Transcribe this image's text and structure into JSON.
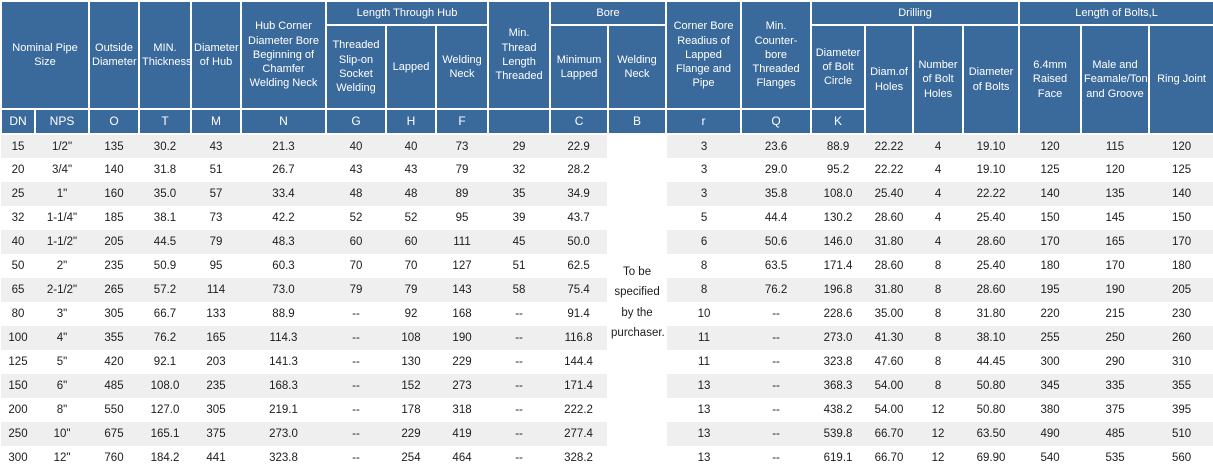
{
  "palette": {
    "header_bg": "#3a6a9c",
    "header_text": "#ffffff",
    "row_stripe": "#efefef",
    "row_plain": "#ffffff",
    "body_text": "#1c1c1c"
  },
  "columns": {
    "nominal": "Nominal Pipe Size",
    "outside": "Outside Diameter",
    "min_thickness": "MIN. Thickness",
    "hub": "Diameter of Hub",
    "hub_corner": "Hub Corner Diameter Bore Beginning of Chamfer Welding Neck",
    "length_through_hub": "Length Through Hub",
    "threaded_slip_on": "Threaded Slip-on Socket Welding",
    "lapped": "Lapped",
    "welding_neck": "Welding Neck",
    "min_thread": "Min. Thread Length Threaded",
    "bore": "Bore",
    "minimum_lapped": "Minimum Lapped",
    "bore_welding_neck": "Welding Neck",
    "corner_bore": "Corner Bore Readius of Lapped Flange and Pipe",
    "counter_bore": "Min. Counter-bore Threaded Flanges",
    "drilling": "Drilling",
    "bolt_circle": "Diameter of Bolt Circle",
    "diam_holes": "Diam.of Holes",
    "num_holes": "Number of Bolt Holes",
    "dia_bolts": "Diameter of Bolts",
    "length_bolts": "Length of Bolts,L",
    "raised_face": "6.4mm Raised Face",
    "male_female": "Male and Feamale/Tongue and Groove",
    "ring_joint": "Ring Joint"
  },
  "letters": [
    "DN",
    "NPS",
    "O",
    "T",
    "M",
    "N",
    "G",
    "H",
    "F",
    "",
    "C",
    "B",
    "r",
    "Q",
    "K"
  ],
  "b_note": "To be specified by the purchaser.",
  "rows": [
    [
      "15",
      "1/2\"",
      "135",
      "30.2",
      "43",
      "21.3",
      "40",
      "40",
      "73",
      "29",
      "22.9",
      "3",
      "23.6",
      "88.9",
      "22.22",
      "4",
      "19.10",
      "120",
      "115",
      "120"
    ],
    [
      "20",
      "3/4\"",
      "140",
      "31.8",
      "51",
      "26.7",
      "43",
      "43",
      "79",
      "32",
      "28.2",
      "3",
      "29.0",
      "95.2",
      "22.22",
      "4",
      "19.10",
      "125",
      "120",
      "125"
    ],
    [
      "25",
      "1\"",
      "160",
      "35.0",
      "57",
      "33.4",
      "48",
      "48",
      "89",
      "35",
      "34.9",
      "3",
      "35.8",
      "108.0",
      "25.40",
      "4",
      "22.22",
      "140",
      "135",
      "140"
    ],
    [
      "32",
      "1-1/4\"",
      "185",
      "38.1",
      "73",
      "42.2",
      "52",
      "52",
      "95",
      "39",
      "43.7",
      "5",
      "44.4",
      "130.2",
      "28.60",
      "4",
      "25.40",
      "150",
      "145",
      "150"
    ],
    [
      "40",
      "1-1/2\"",
      "205",
      "44.5",
      "79",
      "48.3",
      "60",
      "60",
      "111",
      "45",
      "50.0",
      "6",
      "50.6",
      "146.0",
      "31.80",
      "4",
      "28.60",
      "170",
      "165",
      "170"
    ],
    [
      "50",
      "2\"",
      "235",
      "50.9",
      "95",
      "60.3",
      "70",
      "70",
      "127",
      "51",
      "62.5",
      "8",
      "63.5",
      "171.4",
      "28.60",
      "8",
      "25.40",
      "180",
      "170",
      "180"
    ],
    [
      "65",
      "2-1/2\"",
      "265",
      "57.2",
      "114",
      "73.0",
      "79",
      "79",
      "143",
      "58",
      "75.4",
      "8",
      "76.2",
      "196.8",
      "31.80",
      "8",
      "28.60",
      "195",
      "190",
      "205"
    ],
    [
      "80",
      "3\"",
      "305",
      "66.7",
      "133",
      "88.9",
      "--",
      "92",
      "168",
      "--",
      "91.4",
      "10",
      "--",
      "228.6",
      "35.00",
      "8",
      "31.80",
      "220",
      "215",
      "230"
    ],
    [
      "100",
      "4\"",
      "355",
      "76.2",
      "165",
      "114.3",
      "--",
      "108",
      "190",
      "--",
      "116.8",
      "11",
      "--",
      "273.0",
      "41.30",
      "8",
      "38.10",
      "255",
      "250",
      "260"
    ],
    [
      "125",
      "5\"",
      "420",
      "92.1",
      "203",
      "141.3",
      "--",
      "130",
      "229",
      "--",
      "144.4",
      "11",
      "--",
      "323.8",
      "47.60",
      "8",
      "44.45",
      "300",
      "290",
      "310"
    ],
    [
      "150",
      "6\"",
      "485",
      "108.0",
      "235",
      "168.3",
      "--",
      "152",
      "273",
      "--",
      "171.4",
      "13",
      "--",
      "368.3",
      "54.00",
      "8",
      "50.80",
      "345",
      "335",
      "355"
    ],
    [
      "200",
      "8\"",
      "550",
      "127.0",
      "305",
      "219.1",
      "--",
      "178",
      "318",
      "--",
      "222.2",
      "13",
      "--",
      "438.2",
      "54.00",
      "12",
      "50.80",
      "380",
      "375",
      "395"
    ],
    [
      "250",
      "10\"",
      "675",
      "165.1",
      "375",
      "273.0",
      "--",
      "229",
      "419",
      "--",
      "277.4",
      "13",
      "--",
      "539.8",
      "66.70",
      "12",
      "63.50",
      "490",
      "485",
      "510"
    ],
    [
      "300",
      "12\"",
      "760",
      "184.2",
      "441",
      "323.8",
      "--",
      "254",
      "464",
      "--",
      "328.2",
      "13",
      "--",
      "619.1",
      "66.70",
      "12",
      "69.90",
      "540",
      "535",
      "560"
    ]
  ]
}
